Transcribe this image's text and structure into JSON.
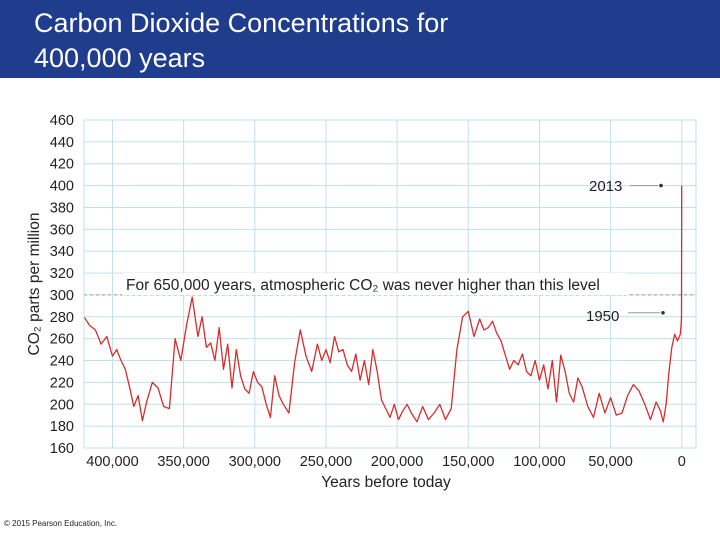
{
  "header": {
    "title_line1": "Carbon Dioxide Concentrations for",
    "title_line2": "400,000 years"
  },
  "colors": {
    "title_bg": "#1f3d8c",
    "title_text": "#ffffff",
    "grid": "#bfe0ef",
    "line": "#d92c2c",
    "threshold": "#9a9a9a",
    "text": "#222222"
  },
  "footer": {
    "copyright": "© 2015 Pearson Education, Inc."
  },
  "chart_data": {
    "type": "line",
    "title": "",
    "xlabel": "Years before today",
    "ylabel": "CO₂ parts per million",
    "xlim": [
      420000,
      -10000
    ],
    "ylim": [
      160,
      460
    ],
    "x_ticks": [
      400000,
      350000,
      300000,
      250000,
      200000,
      150000,
      100000,
      50000,
      0
    ],
    "x_tick_labels": [
      "400,000",
      "350,000",
      "300,000",
      "250,000",
      "200,000",
      "150,000",
      "100,000",
      "50,000",
      "0"
    ],
    "y_ticks": [
      160,
      180,
      200,
      220,
      240,
      260,
      280,
      300,
      320,
      340,
      360,
      380,
      400,
      420,
      440,
      460
    ],
    "y_tick_labels": [
      "160",
      "180",
      "200",
      "220",
      "240",
      "260",
      "280",
      "300",
      "320",
      "340",
      "360",
      "380",
      "400",
      "420",
      "440",
      "460"
    ],
    "grid": true,
    "threshold": {
      "value": 300,
      "label": "For 650,000 years, atmospheric CO₂ was never higher than this level"
    },
    "annotations": [
      {
        "label": "2013",
        "x": 0,
        "y": 400
      },
      {
        "label": "1950",
        "x": 0,
        "y": 280
      }
    ],
    "series": [
      {
        "name": "CO₂",
        "x": [
          420000,
          416000,
          412000,
          408000,
          404000,
          400000,
          397000,
          394000,
          391000,
          388000,
          385000,
          382000,
          379000,
          376000,
          372000,
          368000,
          364000,
          360000,
          356000,
          352000,
          348000,
          344000,
          340000,
          337000,
          334000,
          331000,
          328000,
          325000,
          322000,
          319000,
          316000,
          313000,
          310000,
          307000,
          304000,
          301000,
          298000,
          295000,
          292000,
          289000,
          286000,
          283000,
          280000,
          276000,
          272000,
          268000,
          264000,
          260000,
          256000,
          253000,
          250000,
          247000,
          244000,
          241000,
          238000,
          235000,
          232000,
          229000,
          226000,
          223000,
          220000,
          217000,
          214000,
          211000,
          208000,
          205000,
          202000,
          199000,
          196000,
          193000,
          190000,
          186000,
          182000,
          178000,
          174000,
          170000,
          166000,
          162000,
          158000,
          154000,
          150000,
          146000,
          142000,
          139000,
          136000,
          133000,
          130000,
          127000,
          124000,
          121000,
          118000,
          115000,
          112000,
          109000,
          106000,
          103000,
          100000,
          97000,
          94000,
          91000,
          88000,
          85000,
          82000,
          79000,
          76000,
          73000,
          70000,
          66000,
          62000,
          58000,
          54000,
          50000,
          46000,
          42000,
          38000,
          34000,
          30000,
          26000,
          22000,
          18000,
          15000,
          13000,
          11000,
          9000,
          7000,
          5000,
          3000,
          1000,
          500,
          200,
          63
        ],
        "values": [
          280,
          272,
          268,
          255,
          262,
          244,
          250,
          240,
          232,
          216,
          198,
          208,
          185,
          202,
          220,
          215,
          198,
          196,
          260,
          240,
          272,
          298,
          262,
          280,
          252,
          256,
          240,
          270,
          232,
          255,
          215,
          250,
          226,
          214,
          210,
          230,
          220,
          216,
          200,
          188,
          226,
          208,
          200,
          192,
          238,
          268,
          244,
          230,
          255,
          240,
          250,
          238,
          262,
          248,
          250,
          236,
          230,
          246,
          222,
          240,
          218,
          250,
          230,
          204,
          196,
          188,
          200,
          186,
          194,
          200,
          192,
          184,
          198,
          186,
          192,
          200,
          186,
          196,
          250,
          280,
          285,
          262,
          278,
          268,
          270,
          276,
          265,
          258,
          245,
          232,
          240,
          236,
          246,
          230,
          226,
          240,
          222,
          236,
          214,
          240,
          202,
          245,
          230,
          210,
          202,
          224,
          216,
          198,
          188,
          210,
          192,
          206,
          190,
          192,
          208,
          218,
          212,
          200,
          186,
          202,
          194,
          184,
          200,
          230,
          252,
          264,
          258,
          264,
          272,
          280,
          400
        ]
      }
    ]
  }
}
